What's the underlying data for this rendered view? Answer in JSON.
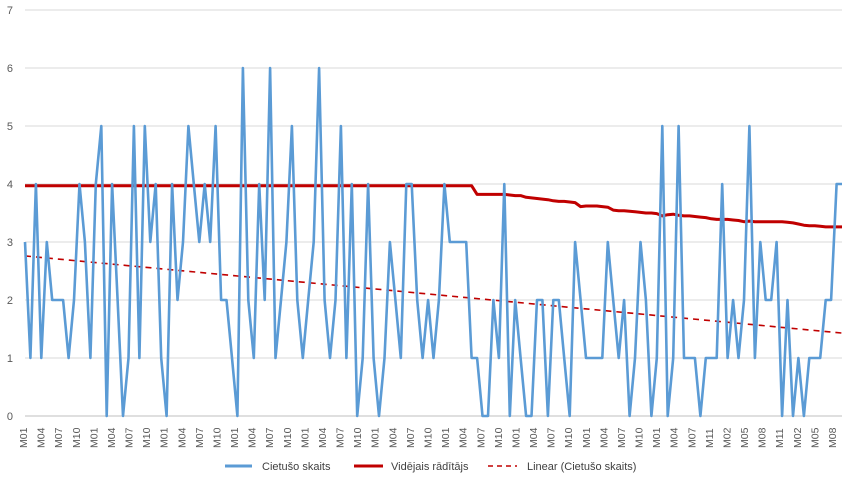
{
  "chart_data": {
    "type": "line",
    "ylim": [
      0,
      7
    ],
    "yticks": [
      0,
      1,
      2,
      3,
      4,
      5,
      6,
      7
    ],
    "grid": true,
    "legend_position": "bottom",
    "x_tick_labels": [
      "M01",
      "M04",
      "M07",
      "M10",
      "M01",
      "M04",
      "M07",
      "M10",
      "M01",
      "M04",
      "M07",
      "M10",
      "M01",
      "M04",
      "M07",
      "M10",
      "M01",
      "M04",
      "M07",
      "M10",
      "M01",
      "M04",
      "M07",
      "M10",
      "M01",
      "M04",
      "M07",
      "M10",
      "M01",
      "M04",
      "M07",
      "M10",
      "M01",
      "M04",
      "M07",
      "M10",
      "M01",
      "M04",
      "M07",
      "M11",
      "M02",
      "M05",
      "M08",
      "M11",
      "M02",
      "M05",
      "M08"
    ],
    "colors": {
      "actual": "#5b9bd5",
      "average": "#c00000",
      "trend": "#c00000",
      "grid": "#d9d9d9",
      "axis": "#bfbfbf"
    },
    "series": [
      {
        "name": "Cietušo skaits",
        "style": "solid",
        "values": [
          3,
          1,
          4,
          1,
          3,
          2,
          2,
          2,
          1,
          2,
          4,
          3,
          1,
          4,
          5,
          0,
          4,
          2,
          0,
          1,
          5,
          1,
          5,
          3,
          4,
          1,
          0,
          4,
          2,
          3,
          5,
          4,
          3,
          4,
          3,
          5,
          2,
          2,
          1,
          0,
          6,
          2,
          1,
          4,
          2,
          6,
          1,
          2,
          3,
          5,
          2,
          1,
          2,
          3,
          6,
          2,
          1,
          2,
          5,
          1,
          4,
          0,
          1,
          4,
          1,
          0,
          1,
          3,
          2,
          1,
          4,
          4,
          2,
          1,
          2,
          1,
          2,
          4,
          3,
          3,
          3,
          3,
          1,
          1,
          0,
          0,
          2,
          1,
          4,
          0,
          2,
          1,
          0,
          0,
          2,
          2,
          0,
          2,
          2,
          1,
          0,
          3,
          2,
          1,
          1,
          1,
          1,
          3,
          2,
          1,
          2,
          0,
          1,
          3,
          2,
          0,
          1,
          5,
          0,
          1,
          5,
          1,
          1,
          1,
          0,
          1,
          1,
          1,
          4,
          1,
          2,
          1,
          2,
          5,
          1,
          3,
          2,
          2,
          3,
          0,
          2,
          0,
          1,
          0,
          1,
          1,
          1,
          2,
          2,
          4,
          4
        ]
      },
      {
        "name": "Vidējais rādītājs",
        "style": "solid-thick",
        "values": [
          3.97,
          3.97,
          3.97,
          3.97,
          3.97,
          3.97,
          3.97,
          3.97,
          3.97,
          3.97,
          3.97,
          3.97,
          3.97,
          3.97,
          3.97,
          3.97,
          3.97,
          3.97,
          3.97,
          3.97,
          3.97,
          3.97,
          3.97,
          3.97,
          3.97,
          3.97,
          3.97,
          3.97,
          3.97,
          3.97,
          3.97,
          3.97,
          3.97,
          3.97,
          3.97,
          3.97,
          3.97,
          3.97,
          3.97,
          3.97,
          3.97,
          3.97,
          3.97,
          3.97,
          3.97,
          3.97,
          3.97,
          3.97,
          3.97,
          3.97,
          3.97,
          3.97,
          3.97,
          3.97,
          3.97,
          3.97,
          3.97,
          3.97,
          3.97,
          3.97,
          3.97,
          3.97,
          3.97,
          3.97,
          3.97,
          3.97,
          3.97,
          3.97,
          3.97,
          3.97,
          3.97,
          3.97,
          3.97,
          3.97,
          3.97,
          3.97,
          3.97,
          3.97,
          3.97,
          3.97,
          3.97,
          3.97,
          3.97,
          3.82,
          3.82,
          3.82,
          3.82,
          3.82,
          3.82,
          3.81,
          3.8,
          3.8,
          3.77,
          3.76,
          3.75,
          3.74,
          3.73,
          3.71,
          3.7,
          3.7,
          3.69,
          3.68,
          3.61,
          3.62,
          3.62,
          3.62,
          3.61,
          3.6,
          3.55,
          3.54,
          3.54,
          3.53,
          3.52,
          3.51,
          3.5,
          3.5,
          3.49,
          3.45,
          3.47,
          3.48,
          3.46,
          3.45,
          3.45,
          3.44,
          3.43,
          3.42,
          3.4,
          3.39,
          3.39,
          3.39,
          3.38,
          3.37,
          3.35,
          3.36,
          3.35,
          3.35,
          3.35,
          3.35,
          3.35,
          3.35,
          3.34,
          3.33,
          3.31,
          3.29,
          3.28,
          3.28,
          3.27,
          3.26,
          3.26,
          3.26,
          3.26
        ]
      },
      {
        "name": "Linear (Cietušo skaits)",
        "style": "dashed",
        "values_linear": [
          2.76,
          1.43
        ]
      }
    ]
  }
}
